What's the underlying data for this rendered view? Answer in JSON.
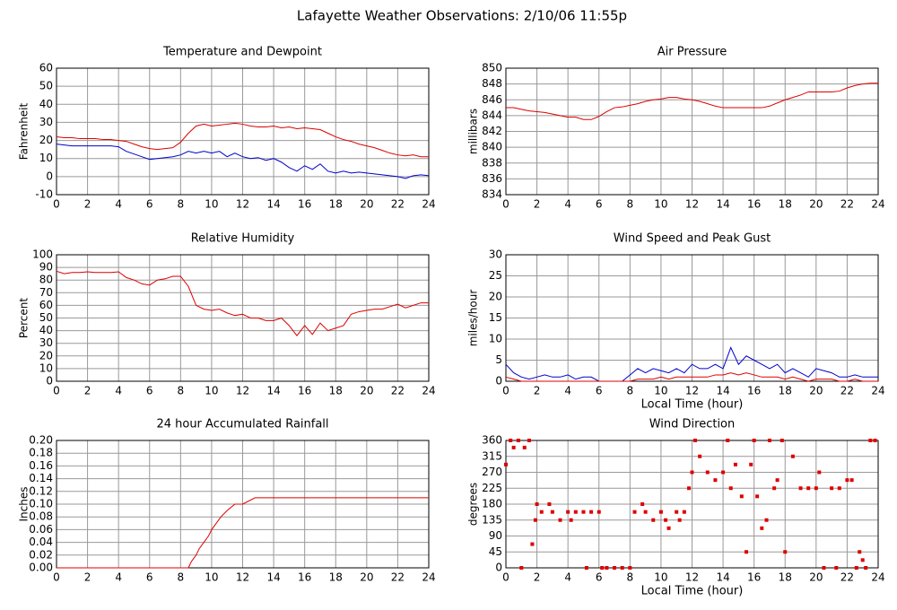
{
  "title": "Lafayette Weather Observations: 2/10/06 11:55p",
  "chart_data": [
    {
      "type": "line",
      "title": "Temperature and Dewpoint",
      "ylabel": "Fahrenheit",
      "x": [
        0,
        0.5,
        1,
        1.5,
        2,
        2.5,
        3,
        3.5,
        4,
        4.5,
        5,
        5.5,
        6,
        6.5,
        7,
        7.5,
        8,
        8.5,
        9,
        9.5,
        10,
        10.5,
        11,
        11.5,
        12,
        12.5,
        13,
        13.5,
        14,
        14.5,
        15,
        15.5,
        16,
        16.5,
        17,
        17.5,
        18,
        18.5,
        19,
        19.5,
        20,
        20.5,
        21,
        21.5,
        22,
        22.5,
        23,
        23.5,
        24
      ],
      "series": [
        {
          "color": "#dd0000",
          "values": [
            22,
            21.5,
            21.5,
            21,
            21,
            21,
            20.5,
            20.5,
            20,
            19.5,
            18,
            16.5,
            15.5,
            15,
            15.5,
            16,
            19,
            24,
            28,
            29,
            28,
            28.5,
            29,
            29.5,
            29,
            28,
            27.5,
            27.5,
            28,
            27,
            27.5,
            26.5,
            27,
            26.5,
            26,
            24,
            22,
            20.5,
            19.5,
            18,
            17,
            16,
            14.5,
            13,
            12,
            11.5,
            12,
            11,
            11
          ]
        },
        {
          "color": "#0000cc",
          "values": [
            18,
            17.5,
            17,
            17,
            17,
            17,
            17,
            17,
            16.5,
            14,
            12.5,
            11,
            9.5,
            10,
            10.5,
            11,
            12,
            14,
            13,
            14,
            13,
            14,
            11,
            13,
            11,
            10,
            10.5,
            9,
            10,
            8,
            5,
            3,
            6,
            4,
            7,
            3,
            2,
            3,
            2,
            2.5,
            2,
            1.5,
            1,
            0.5,
            0,
            -1,
            0.5,
            1,
            0.5
          ]
        }
      ],
      "xlim": [
        0,
        24
      ],
      "xticks": [
        0,
        2,
        4,
        6,
        8,
        10,
        12,
        14,
        16,
        18,
        20,
        22,
        24
      ],
      "ylim": [
        -10,
        60
      ],
      "yticks": [
        -10,
        0,
        10,
        20,
        30,
        40,
        50,
        60
      ],
      "grid": true
    },
    {
      "type": "line",
      "title": "Air Pressure",
      "ylabel": "millibars",
      "x": [
        0,
        0.5,
        1,
        1.5,
        2,
        2.5,
        3,
        3.5,
        4,
        4.5,
        5,
        5.5,
        6,
        6.5,
        7,
        7.5,
        8,
        8.5,
        9,
        9.5,
        10,
        10.5,
        11,
        11.5,
        12,
        12.5,
        13,
        13.5,
        14,
        14.5,
        15,
        15.5,
        16,
        16.5,
        17,
        17.5,
        18,
        18.5,
        19,
        19.5,
        20,
        20.5,
        21,
        21.5,
        22,
        22.5,
        23,
        23.5,
        24
      ],
      "series": [
        {
          "color": "#dd0000",
          "values": [
            845,
            845,
            844.8,
            844.6,
            844.5,
            844.4,
            844.2,
            844,
            843.8,
            843.8,
            843.5,
            843.5,
            843.9,
            844.5,
            845,
            845.1,
            845.3,
            845.5,
            845.8,
            846,
            846.1,
            846.3,
            846.3,
            846.1,
            846,
            845.8,
            845.5,
            845.2,
            845,
            845,
            845,
            845,
            845,
            845,
            845.2,
            845.6,
            846,
            846.3,
            846.6,
            847,
            847,
            847,
            847,
            847.1,
            847.5,
            847.8,
            848,
            848.1,
            848.1
          ]
        }
      ],
      "xlim": [
        0,
        24
      ],
      "xticks": [
        0,
        2,
        4,
        6,
        8,
        10,
        12,
        14,
        16,
        18,
        20,
        22,
        24
      ],
      "ylim": [
        834,
        850
      ],
      "yticks": [
        834,
        836,
        838,
        840,
        842,
        844,
        846,
        848,
        850
      ],
      "grid": true
    },
    {
      "type": "line",
      "title": "Relative Humidity",
      "ylabel": "Percent",
      "x": [
        0,
        0.5,
        1,
        1.5,
        2,
        2.5,
        3,
        3.5,
        4,
        4.5,
        5,
        5.5,
        6,
        6.5,
        7,
        7.5,
        8,
        8.5,
        9,
        9.5,
        10,
        10.5,
        11,
        11.5,
        12,
        12.5,
        13,
        13.5,
        14,
        14.5,
        15,
        15.5,
        16,
        16.5,
        17,
        17.5,
        18,
        18.5,
        19,
        19.5,
        20,
        20.5,
        21,
        21.5,
        22,
        22.5,
        23,
        23.5,
        24
      ],
      "series": [
        {
          "color": "#dd0000",
          "values": [
            87,
            85,
            86,
            86,
            86.5,
            86,
            86,
            86,
            86.5,
            82,
            80,
            77,
            76,
            80,
            81,
            83,
            83,
            75,
            60,
            57,
            56,
            57,
            54,
            52,
            53,
            50,
            50,
            48,
            48,
            50,
            44,
            36,
            44,
            37,
            46,
            40,
            42,
            44,
            53,
            55,
            56,
            57,
            57,
            59,
            61,
            58,
            60,
            62,
            62
          ]
        }
      ],
      "xlim": [
        0,
        24
      ],
      "xticks": [
        0,
        2,
        4,
        6,
        8,
        10,
        12,
        14,
        16,
        18,
        20,
        22,
        24
      ],
      "ylim": [
        0,
        100
      ],
      "yticks": [
        0,
        10,
        20,
        30,
        40,
        50,
        60,
        70,
        80,
        90,
        100
      ],
      "grid": true
    },
    {
      "type": "line",
      "title": "Wind Speed and Peak Gust",
      "ylabel": "miles/hour",
      "xlabel": "Local Time (hour)",
      "x": [
        0,
        0.5,
        1,
        1.5,
        2,
        2.5,
        3,
        3.5,
        4,
        4.5,
        5,
        5.5,
        6,
        6.5,
        7,
        7.5,
        8,
        8.5,
        9,
        9.5,
        10,
        10.5,
        11,
        11.5,
        12,
        12.5,
        13,
        13.5,
        14,
        14.5,
        15,
        15.5,
        16,
        16.5,
        17,
        17.5,
        18,
        18.5,
        19,
        19.5,
        20,
        20.5,
        21,
        21.5,
        22,
        22.5,
        23,
        23.5,
        24
      ],
      "series": [
        {
          "color": "#0000cc",
          "values": [
            4,
            2,
            1,
            0.5,
            1,
            1.5,
            1,
            1,
            1.5,
            0.5,
            1,
            1,
            0,
            0,
            0,
            0,
            1.5,
            3,
            2,
            3,
            2.5,
            2,
            3,
            2,
            4,
            3,
            3,
            4,
            3,
            8,
            4,
            6,
            5,
            4,
            3,
            4,
            2,
            3,
            2,
            1,
            3,
            2.5,
            2,
            1,
            1,
            1.5,
            1,
            1,
            1
          ]
        },
        {
          "color": "#dd0000",
          "values": [
            1,
            0.5,
            0,
            0,
            0,
            0,
            0,
            0,
            0,
            0,
            0,
            0,
            0,
            0,
            0,
            0,
            0,
            0.5,
            0.5,
            0.5,
            1,
            0.5,
            1,
            1,
            1,
            1,
            1,
            1.5,
            1.5,
            2,
            1.5,
            2,
            1.5,
            1,
            1,
            1,
            0.5,
            1,
            0.5,
            0,
            0.5,
            0.5,
            0.5,
            0,
            0,
            0.5,
            0,
            0,
            0
          ]
        }
      ],
      "xlim": [
        0,
        24
      ],
      "xticks": [
        0,
        2,
        4,
        6,
        8,
        10,
        12,
        14,
        16,
        18,
        20,
        22,
        24
      ],
      "ylim": [
        0,
        30
      ],
      "yticks": [
        0,
        5,
        10,
        15,
        20,
        25,
        30
      ],
      "grid": true
    },
    {
      "type": "line",
      "title": "24 hour Accumulated Rainfall",
      "ylabel": "Inches",
      "x": [
        0,
        8.5,
        8.7,
        9,
        9.2,
        9.5,
        9.8,
        10,
        10.3,
        10.6,
        11,
        11.5,
        12,
        12.8,
        24
      ],
      "series": [
        {
          "color": "#dd0000",
          "values": [
            0,
            0,
            0.01,
            0.02,
            0.03,
            0.04,
            0.05,
            0.06,
            0.07,
            0.08,
            0.09,
            0.1,
            0.1,
            0.11,
            0.11
          ]
        }
      ],
      "xlim": [
        0,
        24
      ],
      "xticks": [
        0,
        2,
        4,
        6,
        8,
        10,
        12,
        14,
        16,
        18,
        20,
        22,
        24
      ],
      "ylim": [
        0,
        0.2
      ],
      "yticks": [
        {
          "value": 0,
          "label": "0.00"
        },
        {
          "value": 0.02,
          "label": "0.02"
        },
        {
          "value": 0.04,
          "label": "0.04"
        },
        {
          "value": 0.06,
          "label": "0.06"
        },
        {
          "value": 0.08,
          "label": "0.08"
        },
        {
          "value": 0.1,
          "label": "0.10"
        },
        {
          "value": 0.12,
          "label": "0.12"
        },
        {
          "value": 0.14,
          "label": "0.14"
        },
        {
          "value": 0.16,
          "label": "0.16"
        },
        {
          "value": 0.18,
          "label": "0.18"
        },
        {
          "value": 0.2,
          "label": "0.20"
        }
      ],
      "grid": true
    },
    {
      "type": "scatter",
      "title": "Wind Direction",
      "ylabel": "degrees",
      "xlabel": "Local Time (hour)",
      "color": "#dd0000",
      "x": [
        0,
        0.3,
        0.5,
        0.8,
        1,
        1.2,
        1.5,
        1.7,
        1.9,
        2,
        2.3,
        2.8,
        3,
        3.5,
        4,
        4.2,
        4.5,
        5,
        5.2,
        5.5,
        6,
        6.2,
        6.5,
        7,
        7.5,
        8,
        8.3,
        8.8,
        9,
        9.5,
        10,
        10.3,
        10.5,
        11,
        11.2,
        11.5,
        11.8,
        12,
        12.2,
        12.5,
        13,
        13.5,
        14,
        14.3,
        14.5,
        14.8,
        15.2,
        15.5,
        15.8,
        16,
        16.2,
        16.5,
        16.8,
        17,
        17.3,
        17.5,
        17.8,
        18,
        18.5,
        19,
        19.5,
        20,
        20.2,
        20.5,
        21,
        21.3,
        21.5,
        22,
        22.3,
        22.6,
        22.8,
        23,
        23.2,
        23.5,
        23.8
      ],
      "values": [
        292,
        360,
        340,
        360,
        0,
        340,
        360,
        67,
        135,
        180,
        158,
        180,
        158,
        135,
        158,
        135,
        158,
        158,
        0,
        158,
        158,
        0,
        0,
        0,
        0,
        0,
        158,
        180,
        158,
        135,
        158,
        135,
        112,
        158,
        135,
        158,
        225,
        270,
        360,
        315,
        270,
        248,
        270,
        360,
        225,
        292,
        202,
        45,
        292,
        360,
        202,
        112,
        135,
        360,
        225,
        248,
        360,
        45,
        315,
        225,
        225,
        225,
        270,
        0,
        225,
        0,
        225,
        248,
        248,
        0,
        45,
        22,
        0,
        360,
        360
      ],
      "xlim": [
        0,
        24
      ],
      "xticks": [
        0,
        2,
        4,
        6,
        8,
        10,
        12,
        14,
        16,
        18,
        20,
        22,
        24
      ],
      "ylim": [
        0,
        360
      ],
      "yticks": [
        0,
        45,
        90,
        135,
        180,
        225,
        270,
        315,
        360
      ],
      "grid": true
    }
  ]
}
